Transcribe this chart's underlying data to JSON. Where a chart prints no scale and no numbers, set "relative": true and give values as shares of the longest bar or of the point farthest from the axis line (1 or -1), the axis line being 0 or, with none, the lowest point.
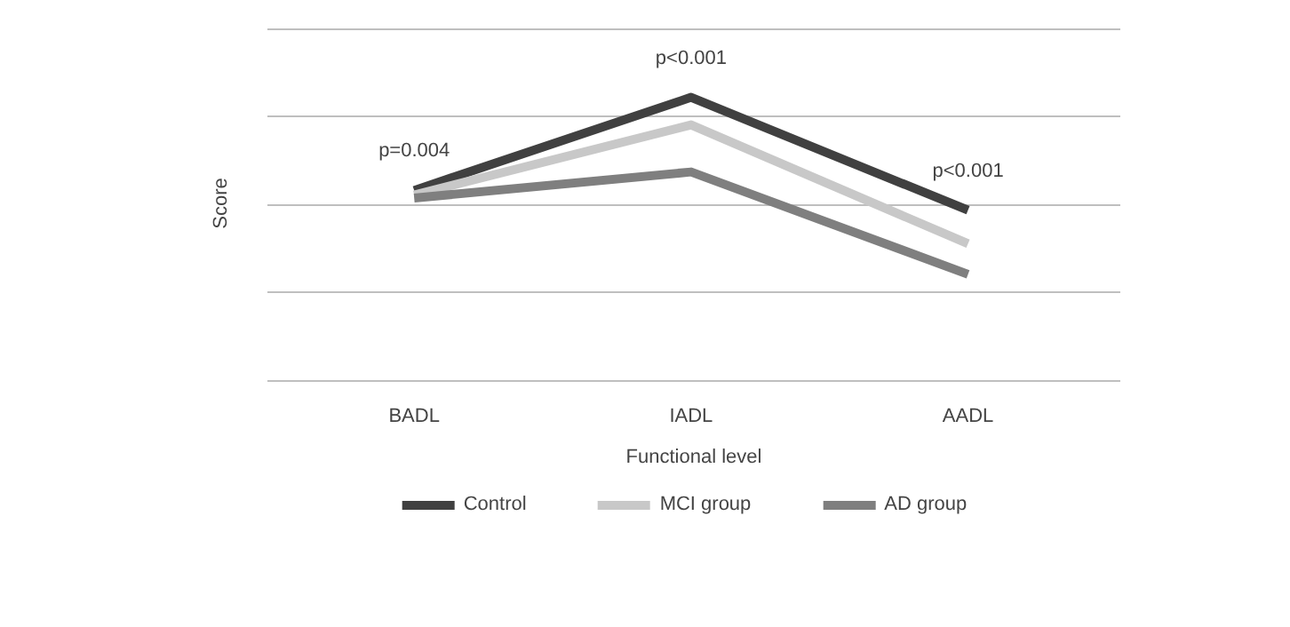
{
  "chart_data": {
    "type": "line",
    "relative": true,
    "xlabel": "Functional level",
    "ylabel": "Score",
    "categories": [
      "BADL",
      "IADL",
      "AADL"
    ],
    "series": [
      {
        "name": "Control",
        "color": "#404040",
        "values": [
          0.672,
          1,
          0.602
        ]
      },
      {
        "name": "MCI group",
        "color": "#c8c8c8",
        "values": [
          0.656,
          0.903,
          0.484
        ]
      },
      {
        "name": "AD group",
        "color": "#7f7f7f",
        "values": [
          0.645,
          0.737,
          0.376
        ]
      }
    ],
    "annotations": [
      "p=0.004",
      "p<0.001",
      "p<0.001"
    ],
    "grid": "y",
    "legend": "bottom",
    "marker": "none",
    "line_style": "solid"
  }
}
